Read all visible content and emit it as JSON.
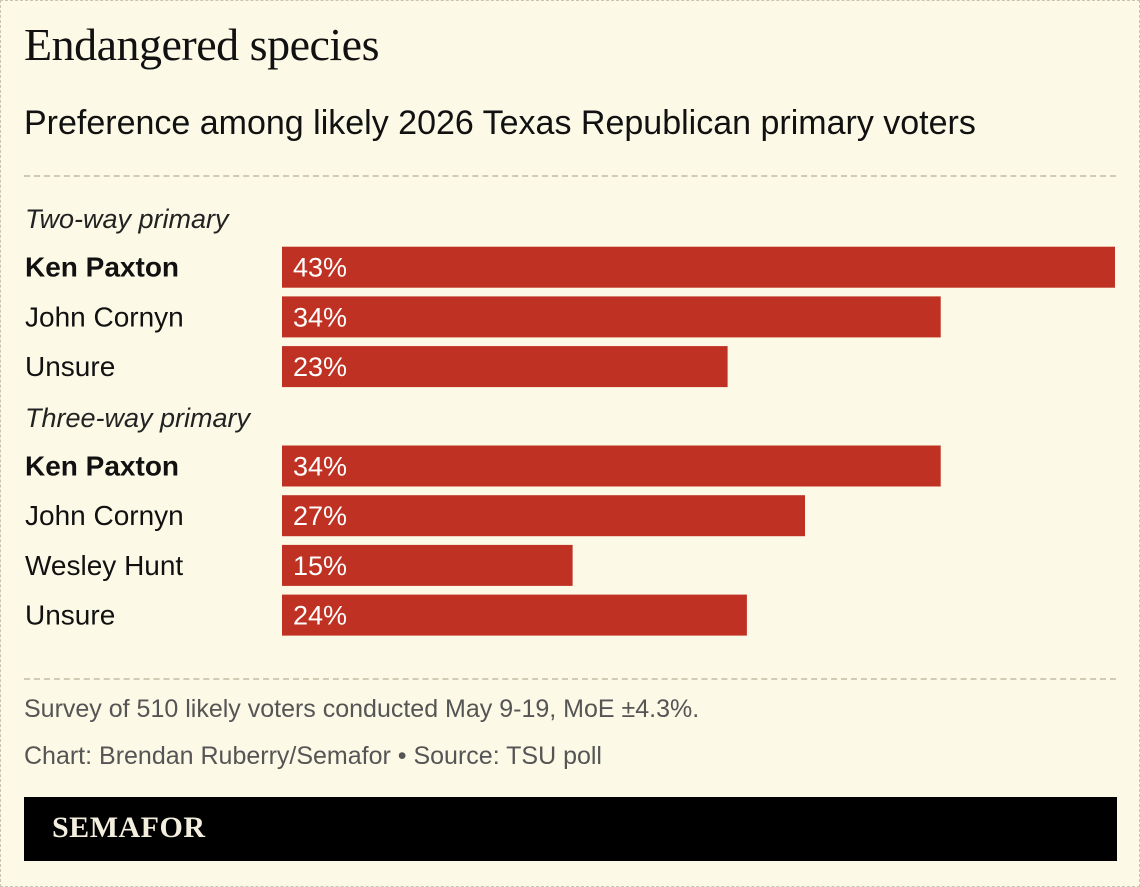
{
  "chart_data": {
    "type": "bar",
    "orientation": "horizontal",
    "title": "Endangered species",
    "subtitle": "Preference among likely 2026 Texas Republican primary voters",
    "groups": [
      {
        "label": "Two-way primary",
        "rows": [
          {
            "name": "Ken Paxton",
            "value": 43,
            "label": "43%",
            "bold": true
          },
          {
            "name": "John Cornyn",
            "value": 34,
            "label": "34%",
            "bold": false
          },
          {
            "name": "Unsure",
            "value": 23,
            "label": "23%",
            "bold": false
          }
        ]
      },
      {
        "label": "Three-way primary",
        "rows": [
          {
            "name": "Ken Paxton",
            "value": 34,
            "label": "34%",
            "bold": true
          },
          {
            "name": "John Cornyn",
            "value": 27,
            "label": "27%",
            "bold": false
          },
          {
            "name": "Wesley Hunt",
            "value": 15,
            "label": "15%",
            "bold": false
          },
          {
            "name": "Unsure",
            "value": 24,
            "label": "24%",
            "bold": false
          }
        ]
      }
    ],
    "xlim": [
      0,
      43
    ],
    "bar_color": "#bf3122",
    "grid": false,
    "legend": "none"
  },
  "notes": {
    "survey": "Survey of 510 likely voters conducted May 9-19, MoE ±4.3%.",
    "credit": "Chart: Brendan Ruberry/Semafor • Source: TSU poll"
  },
  "brand": {
    "name": "SEMAFOR"
  },
  "colors": {
    "background": "#fcf9e6",
    "bar": "#bf3122",
    "brand_bar": "#000000"
  }
}
